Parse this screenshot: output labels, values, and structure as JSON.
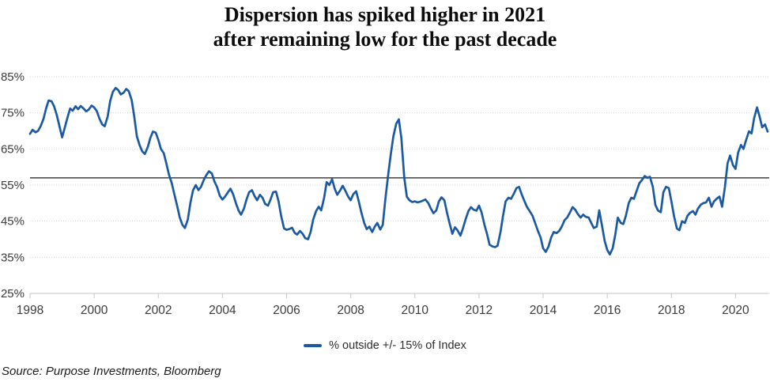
{
  "title": {
    "line1": "Dispersion has spiked higher in 2021",
    "line2": "after remaining low for the past decade"
  },
  "legend": {
    "label": "% outside +/- 15% of Index"
  },
  "source_note": "Source: Purpose Investments, Bloomberg",
  "colors": {
    "series": "#1b5aa2",
    "reference_line": "#404040",
    "grid": "#d3d3d3",
    "axis_text": "#3b3b3b",
    "title_text": "#0d0d0d"
  },
  "chart_data": {
    "type": "line",
    "title": "Dispersion has spiked higher in 2021 after remaining low for the past decade",
    "xlabel": "",
    "ylabel": "",
    "xlim": [
      1998,
      2021.05
    ],
    "ylim": [
      25,
      85
    ],
    "xticks": [
      1998,
      2000,
      2002,
      2004,
      2006,
      2008,
      2010,
      2012,
      2014,
      2016,
      2018,
      2020
    ],
    "yticks": [
      85,
      75,
      65,
      55,
      45,
      35,
      25
    ],
    "ytick_format": "{}%",
    "grid": "horizontal-dotted",
    "legend_position": "bottom-center",
    "reference_line": {
      "axis": "y",
      "value": 57,
      "color": "#404040"
    },
    "series": [
      {
        "name": "% outside +/- 15% of Index",
        "color": "#1b5aa2",
        "points": [
          [
            1998,
            69.2
          ],
          [
            1998.08,
            70.3
          ],
          [
            1998.17,
            69.6
          ],
          [
            1998.25,
            70
          ],
          [
            1998.33,
            71.3
          ],
          [
            1998.42,
            73.3
          ],
          [
            1998.5,
            76.2
          ],
          [
            1998.58,
            78.4
          ],
          [
            1998.67,
            78.2
          ],
          [
            1998.75,
            76.8
          ],
          [
            1998.83,
            74.5
          ],
          [
            1998.92,
            71.2
          ],
          [
            1999,
            68.2
          ],
          [
            1999.08,
            70.8
          ],
          [
            1999.17,
            73.8
          ],
          [
            1999.25,
            76.2
          ],
          [
            1999.33,
            75.6
          ],
          [
            1999.42,
            76.8
          ],
          [
            1999.5,
            76
          ],
          [
            1999.58,
            76.9
          ],
          [
            1999.67,
            76.2
          ],
          [
            1999.75,
            75.4
          ],
          [
            1999.83,
            75.9
          ],
          [
            1999.92,
            77
          ],
          [
            2000,
            76.5
          ],
          [
            2000.08,
            75.5
          ],
          [
            2000.17,
            73.3
          ],
          [
            2000.25,
            71.8
          ],
          [
            2000.33,
            71.3
          ],
          [
            2000.42,
            74
          ],
          [
            2000.5,
            78.3
          ],
          [
            2000.58,
            80.8
          ],
          [
            2000.67,
            81.9
          ],
          [
            2000.75,
            81.3
          ],
          [
            2000.83,
            80.1
          ],
          [
            2000.92,
            80.6
          ],
          [
            2001,
            81.6
          ],
          [
            2001.08,
            81
          ],
          [
            2001.17,
            78.5
          ],
          [
            2001.25,
            74
          ],
          [
            2001.33,
            68.5
          ],
          [
            2001.42,
            66
          ],
          [
            2001.5,
            64.3
          ],
          [
            2001.58,
            63.6
          ],
          [
            2001.67,
            65.5
          ],
          [
            2001.75,
            68
          ],
          [
            2001.83,
            69.8
          ],
          [
            2001.92,
            69.5
          ],
          [
            2002,
            67.5
          ],
          [
            2002.08,
            65
          ],
          [
            2002.17,
            63.8
          ],
          [
            2002.25,
            61
          ],
          [
            2002.33,
            58
          ],
          [
            2002.42,
            55.5
          ],
          [
            2002.5,
            52.5
          ],
          [
            2002.58,
            49.5
          ],
          [
            2002.67,
            46
          ],
          [
            2002.75,
            44
          ],
          [
            2002.83,
            43.1
          ],
          [
            2002.92,
            45.5
          ],
          [
            2003,
            50
          ],
          [
            2003.08,
            53.5
          ],
          [
            2003.17,
            55
          ],
          [
            2003.25,
            53.6
          ],
          [
            2003.33,
            54.5
          ],
          [
            2003.42,
            56.5
          ],
          [
            2003.5,
            57.8
          ],
          [
            2003.58,
            58.8
          ],
          [
            2003.67,
            58.2
          ],
          [
            2003.75,
            56
          ],
          [
            2003.83,
            54.5
          ],
          [
            2003.92,
            52
          ],
          [
            2004,
            51
          ],
          [
            2004.08,
            51.8
          ],
          [
            2004.17,
            53
          ],
          [
            2004.25,
            54
          ],
          [
            2004.33,
            52.5
          ],
          [
            2004.42,
            50
          ],
          [
            2004.5,
            48
          ],
          [
            2004.58,
            46.8
          ],
          [
            2004.67,
            48.5
          ],
          [
            2004.75,
            51
          ],
          [
            2004.83,
            53
          ],
          [
            2004.92,
            53.6
          ],
          [
            2005,
            52
          ],
          [
            2005.08,
            50.8
          ],
          [
            2005.17,
            52.3
          ],
          [
            2005.25,
            51.5
          ],
          [
            2005.33,
            49.8
          ],
          [
            2005.42,
            49.3
          ],
          [
            2005.5,
            51
          ],
          [
            2005.58,
            53
          ],
          [
            2005.67,
            53.2
          ],
          [
            2005.75,
            50.5
          ],
          [
            2005.83,
            46.5
          ],
          [
            2005.92,
            43
          ],
          [
            2006,
            42.6
          ],
          [
            2006.08,
            42.8
          ],
          [
            2006.17,
            43.2
          ],
          [
            2006.25,
            41.8
          ],
          [
            2006.33,
            41.3
          ],
          [
            2006.42,
            42.3
          ],
          [
            2006.5,
            41.5
          ],
          [
            2006.58,
            40.3
          ],
          [
            2006.67,
            40
          ],
          [
            2006.75,
            42
          ],
          [
            2006.83,
            45.5
          ],
          [
            2006.92,
            47.8
          ],
          [
            2007,
            49
          ],
          [
            2007.08,
            48
          ],
          [
            2007.17,
            51.5
          ],
          [
            2007.25,
            55.8
          ],
          [
            2007.33,
            55
          ],
          [
            2007.42,
            56.6
          ],
          [
            2007.5,
            54
          ],
          [
            2007.58,
            52.3
          ],
          [
            2007.67,
            53.5
          ],
          [
            2007.75,
            54.8
          ],
          [
            2007.83,
            53.5
          ],
          [
            2007.92,
            51.8
          ],
          [
            2008,
            50.8
          ],
          [
            2008.08,
            52.5
          ],
          [
            2008.17,
            53.3
          ],
          [
            2008.25,
            50.5
          ],
          [
            2008.33,
            47.5
          ],
          [
            2008.42,
            44.5
          ],
          [
            2008.5,
            42.8
          ],
          [
            2008.58,
            43.5
          ],
          [
            2008.67,
            42
          ],
          [
            2008.75,
            43.5
          ],
          [
            2008.83,
            44.5
          ],
          [
            2008.92,
            42.7
          ],
          [
            2009,
            44
          ],
          [
            2009.08,
            51
          ],
          [
            2009.17,
            58
          ],
          [
            2009.25,
            63.5
          ],
          [
            2009.33,
            68.5
          ],
          [
            2009.42,
            72
          ],
          [
            2009.5,
            73.2
          ],
          [
            2009.58,
            68
          ],
          [
            2009.67,
            57
          ],
          [
            2009.75,
            51.8
          ],
          [
            2009.83,
            50.8
          ],
          [
            2009.92,
            50.3
          ],
          [
            2010,
            50.5
          ],
          [
            2010.08,
            50.2
          ],
          [
            2010.17,
            50.4
          ],
          [
            2010.25,
            50.7
          ],
          [
            2010.33,
            51
          ],
          [
            2010.42,
            50
          ],
          [
            2010.5,
            48.5
          ],
          [
            2010.58,
            47.2
          ],
          [
            2010.67,
            48
          ],
          [
            2010.75,
            50.5
          ],
          [
            2010.83,
            51.6
          ],
          [
            2010.92,
            50.8
          ],
          [
            2011,
            47.5
          ],
          [
            2011.08,
            44.5
          ],
          [
            2011.17,
            41.5
          ],
          [
            2011.25,
            43.3
          ],
          [
            2011.33,
            42.5
          ],
          [
            2011.42,
            41
          ],
          [
            2011.5,
            43
          ],
          [
            2011.58,
            45.5
          ],
          [
            2011.67,
            47.8
          ],
          [
            2011.75,
            48.9
          ],
          [
            2011.83,
            48.2
          ],
          [
            2011.92,
            47.9
          ],
          [
            2012,
            49.3
          ],
          [
            2012.08,
            47.5
          ],
          [
            2012.17,
            44
          ],
          [
            2012.25,
            41.5
          ],
          [
            2012.33,
            38.5
          ],
          [
            2012.42,
            38
          ],
          [
            2012.5,
            37.8
          ],
          [
            2012.58,
            38.2
          ],
          [
            2012.67,
            42
          ],
          [
            2012.75,
            46.5
          ],
          [
            2012.83,
            50.5
          ],
          [
            2012.92,
            51.5
          ],
          [
            2013,
            51.2
          ],
          [
            2013.08,
            52.5
          ],
          [
            2013.17,
            54.2
          ],
          [
            2013.25,
            54.5
          ],
          [
            2013.33,
            52.5
          ],
          [
            2013.42,
            50.5
          ],
          [
            2013.5,
            48.9
          ],
          [
            2013.58,
            47.8
          ],
          [
            2013.67,
            46.5
          ],
          [
            2013.75,
            44.5
          ],
          [
            2013.83,
            42.5
          ],
          [
            2013.92,
            40.5
          ],
          [
            2014,
            37.5
          ],
          [
            2014.08,
            36.5
          ],
          [
            2014.17,
            38
          ],
          [
            2014.25,
            40.5
          ],
          [
            2014.33,
            42
          ],
          [
            2014.42,
            41.7
          ],
          [
            2014.5,
            42.3
          ],
          [
            2014.58,
            43.5
          ],
          [
            2014.67,
            45.3
          ],
          [
            2014.75,
            46
          ],
          [
            2014.83,
            47.3
          ],
          [
            2014.92,
            48.9
          ],
          [
            2015,
            48.2
          ],
          [
            2015.08,
            47
          ],
          [
            2015.17,
            46
          ],
          [
            2015.25,
            46.8
          ],
          [
            2015.33,
            46.2
          ],
          [
            2015.42,
            46
          ],
          [
            2015.5,
            44.5
          ],
          [
            2015.58,
            43.1
          ],
          [
            2015.67,
            43.5
          ],
          [
            2015.75,
            48
          ],
          [
            2015.83,
            44
          ],
          [
            2015.92,
            39.5
          ],
          [
            2016,
            37
          ],
          [
            2016.08,
            35.8
          ],
          [
            2016.17,
            37.5
          ],
          [
            2016.25,
            41.3
          ],
          [
            2016.33,
            46
          ],
          [
            2016.42,
            44.5
          ],
          [
            2016.5,
            44.2
          ],
          [
            2016.58,
            46.5
          ],
          [
            2016.67,
            50
          ],
          [
            2016.75,
            51.5
          ],
          [
            2016.83,
            51.2
          ],
          [
            2016.92,
            53.5
          ],
          [
            2017,
            55.5
          ],
          [
            2017.08,
            56.4
          ],
          [
            2017.17,
            57.5
          ],
          [
            2017.25,
            57
          ],
          [
            2017.33,
            57.3
          ],
          [
            2017.42,
            54.5
          ],
          [
            2017.5,
            49.5
          ],
          [
            2017.58,
            48
          ],
          [
            2017.67,
            47.5
          ],
          [
            2017.75,
            53
          ],
          [
            2017.83,
            54.5
          ],
          [
            2017.92,
            54.2
          ],
          [
            2018,
            50.5
          ],
          [
            2018.08,
            46.5
          ],
          [
            2018.17,
            43
          ],
          [
            2018.25,
            42.5
          ],
          [
            2018.33,
            45
          ],
          [
            2018.42,
            44.5
          ],
          [
            2018.5,
            46.5
          ],
          [
            2018.58,
            47.3
          ],
          [
            2018.67,
            47.8
          ],
          [
            2018.75,
            46.8
          ],
          [
            2018.83,
            48.5
          ],
          [
            2018.92,
            49.6
          ],
          [
            2019,
            50
          ],
          [
            2019.08,
            50.2
          ],
          [
            2019.17,
            51.5
          ],
          [
            2019.25,
            49
          ],
          [
            2019.33,
            50.5
          ],
          [
            2019.42,
            51.3
          ],
          [
            2019.5,
            51.8
          ],
          [
            2019.58,
            49
          ],
          [
            2019.67,
            54.5
          ],
          [
            2019.75,
            61
          ],
          [
            2019.83,
            63.2
          ],
          [
            2019.92,
            60.5
          ],
          [
            2020,
            59.5
          ],
          [
            2020.08,
            64
          ],
          [
            2020.17,
            66.1
          ],
          [
            2020.25,
            65
          ],
          [
            2020.33,
            67.5
          ],
          [
            2020.42,
            69.9
          ],
          [
            2020.5,
            69.3
          ],
          [
            2020.58,
            73.5
          ],
          [
            2020.67,
            76.5
          ],
          [
            2020.75,
            74
          ],
          [
            2020.83,
            71
          ],
          [
            2020.92,
            71.8
          ],
          [
            2021,
            69.8
          ]
        ]
      }
    ]
  }
}
